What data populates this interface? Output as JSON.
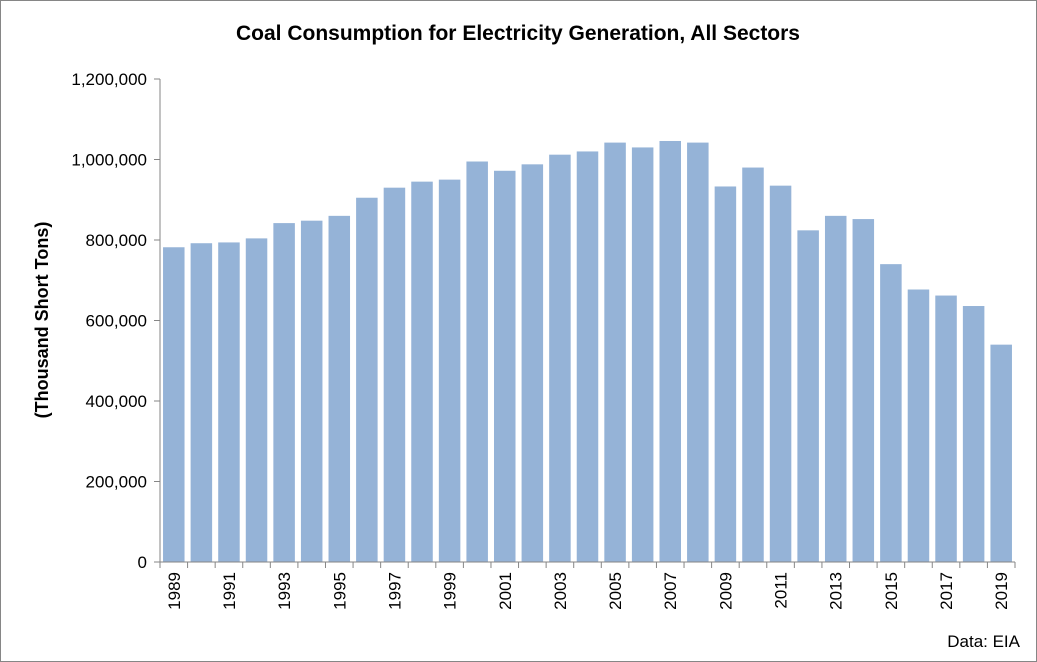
{
  "chart_data": {
    "type": "bar",
    "title": "Coal Consumption for Electricity Generation, All Sectors",
    "xlabel": "",
    "ylabel": "(Thousand Short Tons)",
    "source_note": "Data: EIA",
    "ylim": [
      0,
      1200000
    ],
    "y_ticks": [
      0,
      200000,
      400000,
      600000,
      800000,
      1000000,
      1200000
    ],
    "y_tick_labels": [
      "0",
      "200,000",
      "400,000",
      "600,000",
      "800,000",
      "1,000,000",
      "1,200,000"
    ],
    "categories": [
      "1989",
      "1990",
      "1991",
      "1992",
      "1993",
      "1994",
      "1995",
      "1996",
      "1997",
      "1998",
      "1999",
      "2000",
      "2001",
      "2002",
      "2003",
      "2004",
      "2005",
      "2006",
      "2007",
      "2008",
      "2009",
      "2010",
      "2011",
      "2012",
      "2013",
      "2014",
      "2015",
      "2016",
      "2017",
      "2018",
      "2019"
    ],
    "x_tick_labels": [
      "1989",
      "1991",
      "1993",
      "1995",
      "1997",
      "1999",
      "2001",
      "2003",
      "2005",
      "2007",
      "2009",
      "2011",
      "2013",
      "2015",
      "2017",
      "2019"
    ],
    "values": [
      782000,
      792000,
      794000,
      804000,
      842000,
      848000,
      860000,
      905000,
      930000,
      945000,
      950000,
      995000,
      972000,
      988000,
      1012000,
      1020000,
      1042000,
      1030000,
      1046000,
      1042000,
      933000,
      980000,
      935000,
      824000,
      860000,
      852000,
      740000,
      677000,
      662000,
      636000,
      540000
    ],
    "bar_color": "#95b3d7",
    "grid": false,
    "legend": "none"
  }
}
